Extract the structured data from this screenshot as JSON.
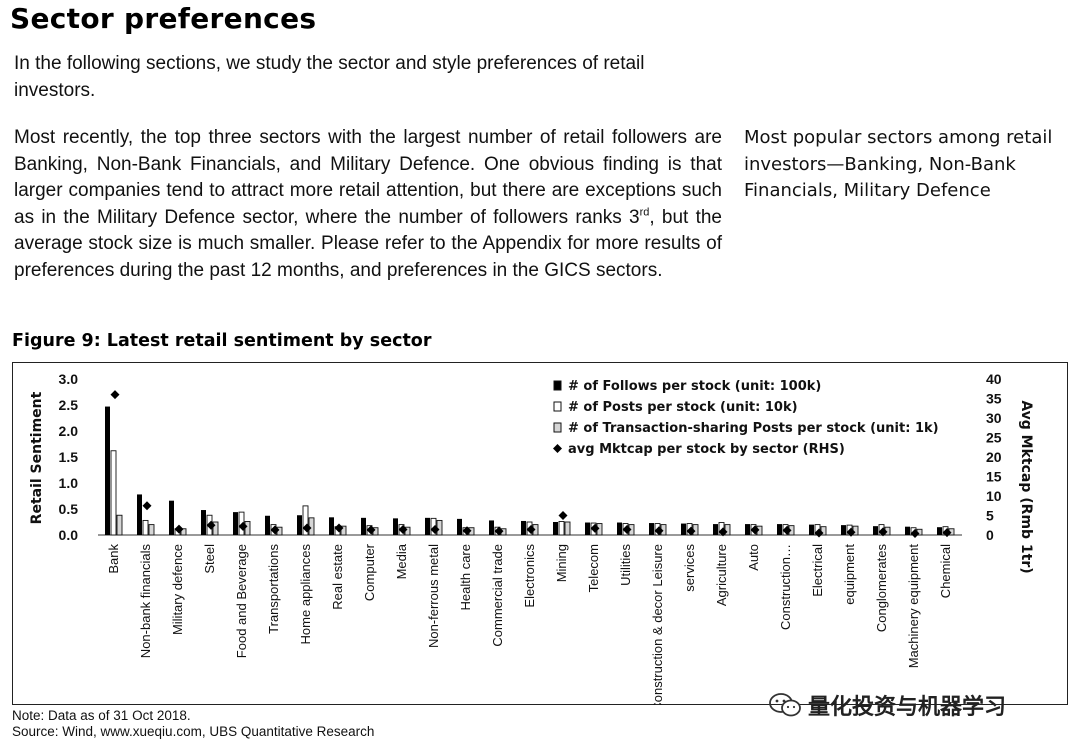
{
  "section": {
    "heading": "Sector preferences",
    "intro": "In the following sections, we study the sector and style preferences of retail investors.",
    "body_before_sup": "Most recently, the top three sectors with the largest number of retail followers are Banking, Non-Bank Financials, and Military Defence. One obvious finding is that larger companies tend to attract more retail attention, but there are exceptions such as in the Military Defence sector, where the number of followers ranks 3",
    "body_sup": "rd",
    "body_after_sup": ", but the average stock size is much smaller. Please refer to the Appendix for more results of preferences during the past 12 months, and preferences in the GICS sectors.",
    "sidebar": "Most popular sectors among retail investors—Banking, Non-Bank Financials, Military Defence"
  },
  "figure": {
    "title": "Figure 9: Latest retail sentiment by sector",
    "note": "Note: Data as of 31 Oct 2018.",
    "source": "Source: Wind, www.xueqiu.com, UBS Quantitative Research"
  },
  "watermark": {
    "text": "量化投资与机器学习"
  },
  "chart_data": {
    "type": "bar",
    "ylabel": "Retail Sentiment",
    "y2label": "Avg Mktcap (Rmb 1tr)",
    "ylim": [
      0,
      3.0
    ],
    "y_ticks": [
      "0.0",
      "0.5",
      "1.0",
      "1.5",
      "2.0",
      "2.5",
      "3.0"
    ],
    "y2lim": [
      0,
      40
    ],
    "y2_ticks": [
      "0",
      "5",
      "10",
      "15",
      "20",
      "25",
      "30",
      "35",
      "40"
    ],
    "grid": false,
    "legend_position": "top-right",
    "colors": {
      "follows": "#000000",
      "posts": "#ffffff",
      "transactions": "#d6d6d6",
      "marker": "#000000"
    },
    "categories": [
      "Bank",
      "Non-bank financials",
      "Military defence",
      "Steel",
      "Food and Beverage",
      "Transportations",
      "Home appliances",
      "Real estate",
      "Computer",
      "Media",
      "Non-ferrous metal",
      "Health care",
      "Commercial trade",
      "Electronics",
      "Mining",
      "Telecom",
      "Utilities",
      "Construction & decor Leisure",
      "services",
      "Agriculture",
      "Auto",
      "Construction…",
      "Electrical",
      "equipment",
      "Conglomerates",
      "Machinery equipment",
      "Chemical"
    ],
    "series": [
      {
        "name": "# of Follows per stock (unit: 100k)",
        "values": [
          2.47,
          0.78,
          0.66,
          0.48,
          0.44,
          0.37,
          0.38,
          0.34,
          0.33,
          0.32,
          0.33,
          0.31,
          0.28,
          0.27,
          0.25,
          0.24,
          0.24,
          0.23,
          0.22,
          0.21,
          0.21,
          0.21,
          0.2,
          0.19,
          0.17,
          0.16,
          0.15
        ]
      },
      {
        "name": "# of Posts per stock (unit: 10k)",
        "values": [
          1.62,
          0.28,
          0.12,
          0.38,
          0.44,
          0.2,
          0.56,
          0.16,
          0.18,
          0.2,
          0.32,
          0.14,
          0.15,
          0.25,
          0.26,
          0.23,
          0.22,
          0.22,
          0.22,
          0.24,
          0.2,
          0.2,
          0.2,
          0.19,
          0.2,
          0.14,
          0.16
        ]
      },
      {
        "name": "# of Transaction-sharing Posts per stock (unit: 1k)",
        "values": [
          0.38,
          0.2,
          0.12,
          0.25,
          0.26,
          0.15,
          0.33,
          0.17,
          0.14,
          0.15,
          0.28,
          0.14,
          0.12,
          0.2,
          0.25,
          0.22,
          0.2,
          0.2,
          0.2,
          0.2,
          0.17,
          0.18,
          0.16,
          0.17,
          0.15,
          0.11,
          0.12
        ]
      },
      {
        "name": "avg Mktcap per stock by sector (RHS)",
        "values": [
          36,
          7.5,
          1.5,
          2.5,
          2.2,
          1.3,
          1.8,
          1.8,
          1.3,
          1.4,
          1.4,
          1.1,
          1.0,
          1.4,
          5.0,
          1.7,
          1.4,
          1.1,
          1.0,
          0.8,
          1.3,
          1.2,
          0.5,
          0.7,
          0.8,
          0.4,
          0.6
        ]
      }
    ]
  }
}
